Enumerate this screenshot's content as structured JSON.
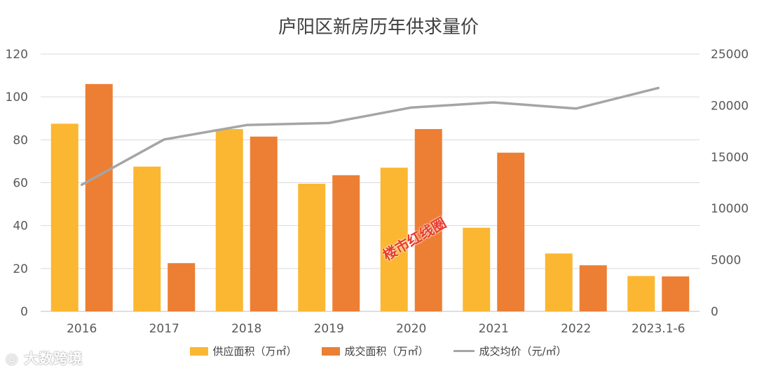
{
  "chart_data": {
    "type": "bar",
    "title": "庐阳区新房历年供求量价",
    "categories": [
      "2016",
      "2017",
      "2018",
      "2019",
      "2020",
      "2021",
      "2022",
      "2023.1-6"
    ],
    "series": [
      {
        "name": "供应面积（万㎡）",
        "type": "bar",
        "axis": "left",
        "color": "#FBB731",
        "values": [
          87.5,
          67.5,
          85,
          59.5,
          67,
          39,
          27,
          16.5
        ]
      },
      {
        "name": "成交面积（万㎡）",
        "type": "bar",
        "axis": "left",
        "color": "#EC7F33",
        "values": [
          106,
          22.5,
          81.5,
          63.5,
          85,
          74,
          21.5,
          16.3
        ]
      },
      {
        "name": "成交均价（元/㎡）",
        "type": "line",
        "axis": "right",
        "color": "#A5A5A5",
        "values": [
          12300,
          16700,
          18100,
          18300,
          19800,
          20300,
          19700,
          21700
        ]
      }
    ],
    "left_axis": {
      "min": 0,
      "max": 120,
      "ticks": [
        0,
        20,
        40,
        60,
        80,
        100,
        120
      ]
    },
    "right_axis": {
      "min": 0,
      "max": 25000,
      "ticks": [
        0,
        5000,
        10000,
        15000,
        20000,
        25000
      ]
    },
    "grid": true,
    "legend_position": "bottom"
  },
  "watermark": "大数跨境",
  "stamp": "楼市红线圈"
}
